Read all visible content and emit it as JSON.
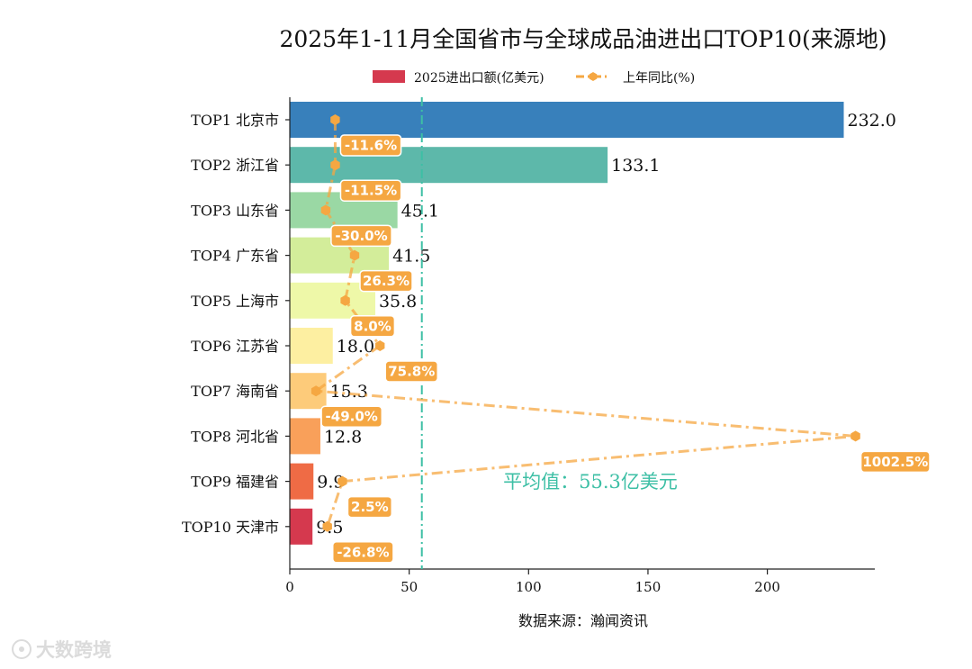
{
  "chart_data": {
    "type": "bar",
    "orientation": "horizontal",
    "title": "2025年1-11月全国省市与全球成品油进出口TOP10(来源地)",
    "xlabel": "数据来源：瀚闻资讯",
    "ylabel": "",
    "xlim": [
      0,
      245
    ],
    "x_ticks": [
      0,
      50,
      100,
      150,
      200
    ],
    "grid": false,
    "legend_position": "top-center",
    "categories": [
      "TOP1 北京市",
      "TOP2 浙江省",
      "TOP3 山东省",
      "TOP4 广东省",
      "TOP5 上海市",
      "TOP6 江苏省",
      "TOP7 海南省",
      "TOP8 河北省",
      "TOP9 福建省",
      "TOP10 天津市"
    ],
    "series": [
      {
        "name": "2025进出口额(亿美元)",
        "type": "bar",
        "values": [
          232.0,
          133.1,
          45.1,
          41.5,
          35.8,
          18.0,
          15.3,
          12.8,
          9.9,
          9.5
        ],
        "value_labels": [
          "232.0",
          "133.1",
          "45.1",
          "41.5",
          "35.8",
          "18.0",
          "15.3",
          "12.8",
          "9.9",
          "9.5"
        ],
        "colors": [
          "#3880bb",
          "#5db8aa",
          "#9ad8a4",
          "#d3ed9a",
          "#eef8a8",
          "#fdefa1",
          "#fdcb7a",
          "#f9a05a",
          "#ef6b45",
          "#d5394e"
        ]
      },
      {
        "name": "上年同比(%)",
        "type": "line",
        "values": [
          -11.6,
          -11.5,
          -30.0,
          26.3,
          8.0,
          75.8,
          -49.0,
          1002.5,
          2.5,
          -26.8
        ],
        "value_labels": [
          "-11.6%",
          "-11.5%",
          "-30.0%",
          "26.3%",
          "8.0%",
          "75.8%",
          "-49.0%",
          "1002.5%",
          "2.5%",
          "-26.8%"
        ],
        "color": "#f5a742"
      }
    ],
    "average": {
      "value": 55.3,
      "label": "平均值：55.3亿美元",
      "color": "#3dbfa5"
    }
  },
  "watermark": {
    "text": "大数跨境"
  }
}
